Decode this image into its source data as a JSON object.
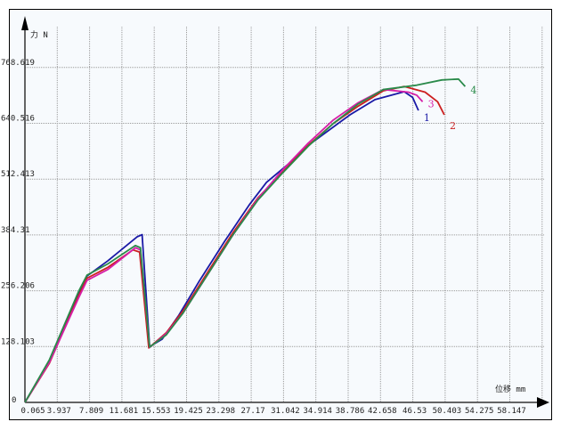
{
  "chart_data": {
    "type": "line",
    "title": "",
    "xlabel": "位移 mm",
    "ylabel": "力 N",
    "x_ticks": [
      "0.065",
      "3.937",
      "7.809",
      "11.681",
      "15.553",
      "19.425",
      "23.298",
      "27.17",
      "31.042",
      "34.914",
      "38.786",
      "42.658",
      "46.53",
      "50.403",
      "54.275",
      "58.147"
    ],
    "y_ticks": [
      "0",
      "128.103",
      "256.206",
      "384.31",
      "512.413",
      "640.516",
      "768.619"
    ],
    "xlim": [
      0.065,
      58.147
    ],
    "ylim": [
      0,
      768.619
    ],
    "grid": true,
    "series": [
      {
        "name": "1",
        "color": "#1a1aa6",
        "points": [
          [
            0.065,
            0
          ],
          [
            3,
            95
          ],
          [
            6.5,
            250
          ],
          [
            7.5,
            290
          ],
          [
            10,
            325
          ],
          [
            13.5,
            380
          ],
          [
            14.1,
            385
          ],
          [
            15,
            128
          ],
          [
            16.5,
            145
          ],
          [
            18.5,
            200
          ],
          [
            21,
            280
          ],
          [
            24,
            370
          ],
          [
            27,
            455
          ],
          [
            29,
            505
          ],
          [
            31.5,
            545
          ],
          [
            34,
            590
          ],
          [
            36.5,
            625
          ],
          [
            39,
            660
          ],
          [
            42,
            695
          ],
          [
            45.5,
            713
          ],
          [
            46.5,
            700
          ],
          [
            47.2,
            670
          ]
        ]
      },
      {
        "name": "2",
        "color": "#cc1f1f",
        "points": [
          [
            0.065,
            0
          ],
          [
            3,
            90
          ],
          [
            6.5,
            245
          ],
          [
            7.5,
            285
          ],
          [
            10,
            310
          ],
          [
            13,
            350
          ],
          [
            13.8,
            345
          ],
          [
            14.9,
            125
          ],
          [
            17,
            160
          ],
          [
            19,
            210
          ],
          [
            22,
            300
          ],
          [
            25,
            390
          ],
          [
            28,
            470
          ],
          [
            31,
            530
          ],
          [
            34,
            590
          ],
          [
            37,
            640
          ],
          [
            40,
            680
          ],
          [
            43,
            715
          ],
          [
            45.5,
            725
          ],
          [
            48,
            712
          ],
          [
            49.5,
            690
          ],
          [
            50.3,
            660
          ]
        ]
      },
      {
        "name": "3",
        "color": "#d61fa8",
        "points": [
          [
            0.065,
            0
          ],
          [
            3,
            92
          ],
          [
            6.5,
            240
          ],
          [
            7.5,
            280
          ],
          [
            10,
            305
          ],
          [
            13.3,
            355
          ],
          [
            13.9,
            350
          ],
          [
            15,
            126
          ],
          [
            17,
            158
          ],
          [
            19,
            205
          ],
          [
            22,
            295
          ],
          [
            25,
            385
          ],
          [
            28,
            468
          ],
          [
            31,
            535
          ],
          [
            34,
            595
          ],
          [
            37,
            648
          ],
          [
            40,
            688
          ],
          [
            43,
            718
          ],
          [
            46,
            712
          ],
          [
            47,
            705
          ],
          [
            47.7,
            690
          ]
        ]
      },
      {
        "name": "4",
        "color": "#2a8a4a",
        "points": [
          [
            0.065,
            0
          ],
          [
            3,
            98
          ],
          [
            6.5,
            255
          ],
          [
            7.5,
            292
          ],
          [
            10,
            318
          ],
          [
            13.3,
            360
          ],
          [
            13.9,
            355
          ],
          [
            15,
            127
          ],
          [
            17,
            155
          ],
          [
            19,
            205
          ],
          [
            22,
            295
          ],
          [
            25,
            385
          ],
          [
            28,
            465
          ],
          [
            31,
            528
          ],
          [
            34,
            588
          ],
          [
            37,
            640
          ],
          [
            40,
            685
          ],
          [
            43,
            718
          ],
          [
            47,
            728
          ],
          [
            50,
            740
          ],
          [
            52,
            742
          ],
          [
            52.8,
            725
          ]
        ]
      }
    ]
  }
}
